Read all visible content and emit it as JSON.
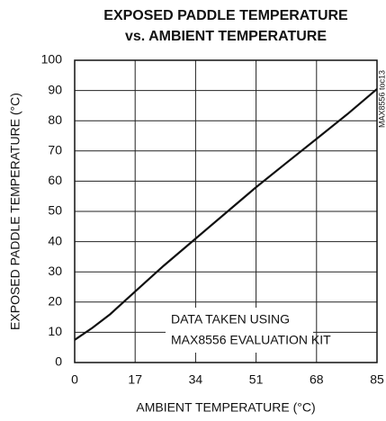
{
  "chart_data": {
    "type": "line",
    "title": [
      "EXPOSED PADDLE TEMPERATURE",
      "vs. AMBIENT TEMPERATURE"
    ],
    "x_label": "AMBIENT TEMPERATURE (°C)",
    "y_label": "EXPOSED PADDLE TEMPERATURE (°C)",
    "annotation": [
      "DATA TAKEN USING",
      "MAX8556 EVALUATION KIT"
    ],
    "side_label": "MAX8556 toc13",
    "x": [
      0,
      5,
      10,
      17,
      25,
      34,
      42,
      51,
      60,
      68,
      77,
      85
    ],
    "series": [
      {
        "color": "#111111",
        "values": [
          7.5,
          11.5,
          16,
          23.5,
          32,
          41,
          49,
          58,
          66.5,
          74,
          82.5,
          90.5
        ]
      }
    ],
    "xlim": [
      0,
      85
    ],
    "xticks": [
      0,
      17,
      34,
      51,
      68,
      85
    ],
    "ylim": [
      0,
      100
    ],
    "yticks": [
      0,
      10,
      20,
      30,
      40,
      50,
      60,
      70,
      80,
      90,
      100
    ],
    "grid": true
  }
}
